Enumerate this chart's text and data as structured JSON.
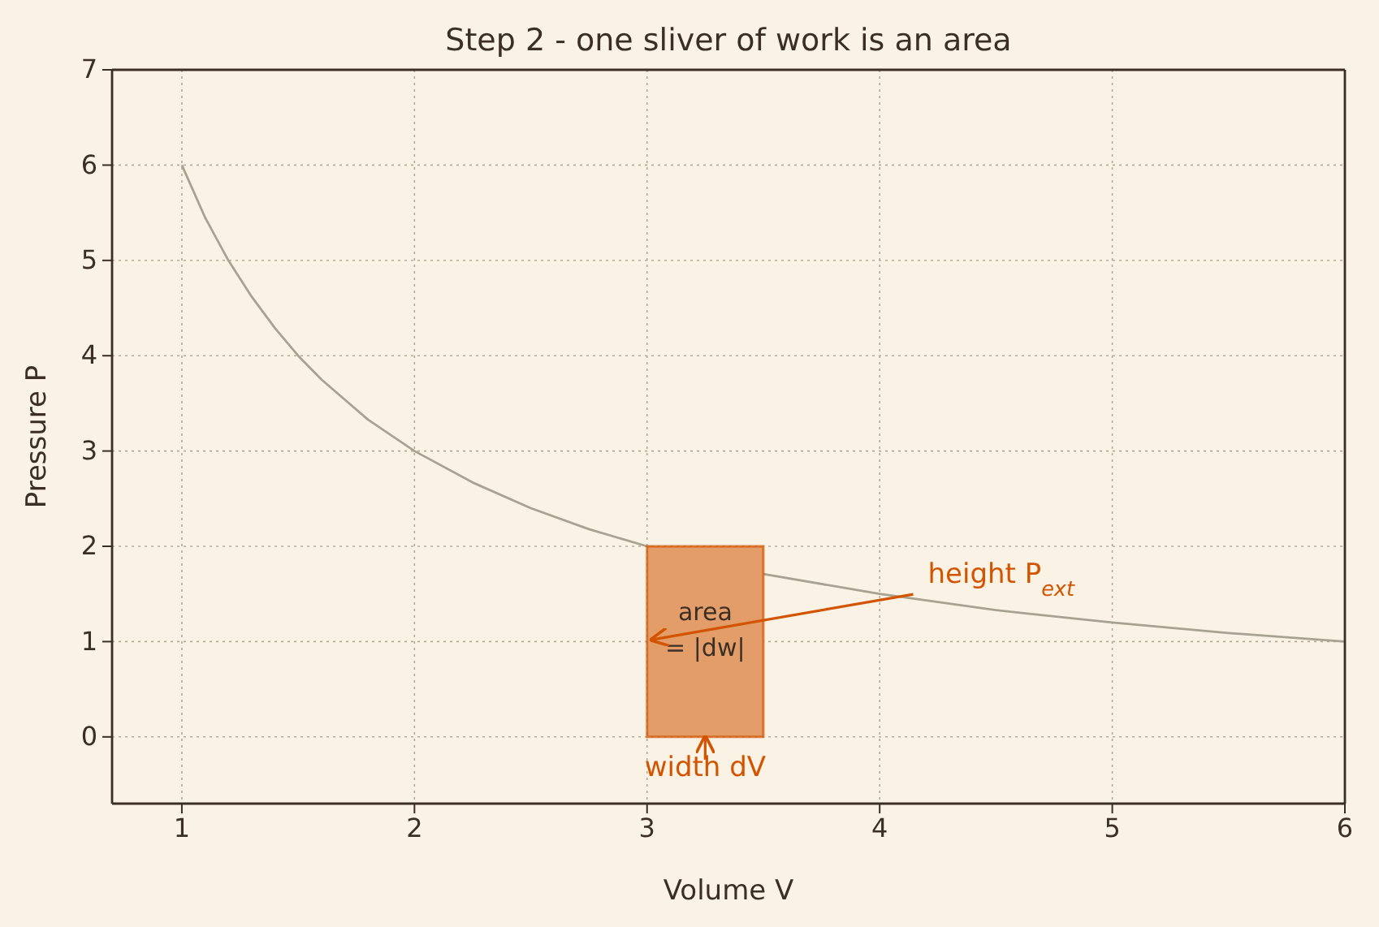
{
  "chart_data": {
    "type": "line",
    "title": "Step 2 - one sliver of work is an area",
    "xlabel": "Volume V",
    "ylabel": "Pressure P",
    "xlim": [
      0.7,
      6
    ],
    "ylim": [
      -0.7,
      7
    ],
    "xticks": [
      1,
      2,
      3,
      4,
      5,
      6
    ],
    "yticks": [
      0,
      1,
      2,
      3,
      4,
      5,
      6,
      7
    ],
    "grid": true,
    "line_style": "solid",
    "marker": "none",
    "series": [
      {
        "color": "#a8a292",
        "x": [
          1,
          1.1,
          1.2,
          1.3,
          1.4,
          1.5,
          1.6,
          1.8,
          2,
          2.25,
          2.5,
          2.75,
          3,
          3.5,
          4,
          4.5,
          5,
          5.5,
          6
        ],
        "values": [
          6,
          5.45,
          5,
          4.62,
          4.29,
          4,
          3.75,
          3.33,
          3,
          2.67,
          2.4,
          2.18,
          2,
          1.71,
          1.5,
          1.33,
          1.2,
          1.09,
          1
        ]
      },
      {
        "type": "area",
        "color": "#e39d69",
        "x": [
          3,
          3.5
        ],
        "values": [
          2,
          2
        ]
      }
    ],
    "annotations": [
      "area\n= |dw|",
      {
        "text": "height P$_{ext}$",
        "x": 3.02,
        "y": 1.02
      },
      {
        "text": "width dV",
        "x": 3.25,
        "y": 0
      }
    ]
  }
}
